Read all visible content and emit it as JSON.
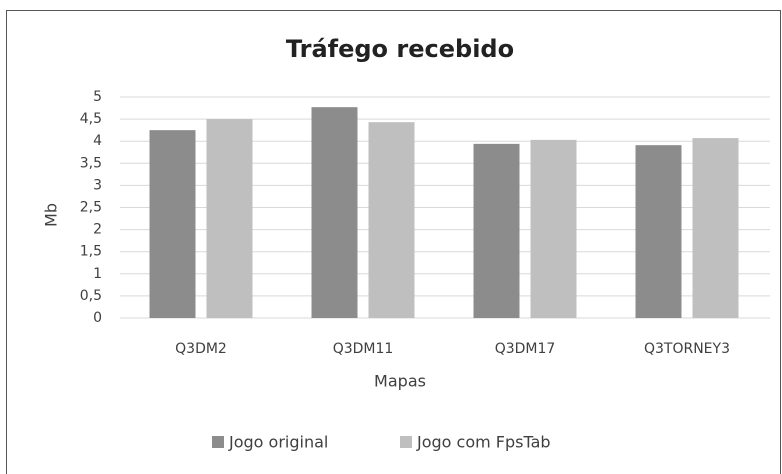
{
  "chart_data": {
    "type": "bar",
    "title": "Tráfego recebido",
    "xlabel": "Mapas",
    "ylabel": "Mb",
    "categories": [
      "Q3DM2",
      "Q3DM11",
      "Q3DM17",
      "Q3TORNEY3"
    ],
    "series": [
      {
        "name": "Jogo original",
        "color": "#8c8c8c",
        "values": [
          4.25,
          4.77,
          3.94,
          3.91
        ]
      },
      {
        "name": "Jogo com FpsTab",
        "color": "#bfbfbf",
        "values": [
          4.5,
          4.43,
          4.03,
          4.07
        ]
      }
    ],
    "ylim": [
      0,
      5
    ],
    "yticks": [
      0,
      {
        "value": 0.5,
        "label": "0,5"
      },
      1,
      {
        "value": 1.5,
        "label": "1,5"
      },
      2,
      {
        "value": 2.5,
        "label": "2,5"
      },
      3,
      {
        "value": 3.5,
        "label": "3,5"
      },
      4,
      {
        "value": 4.5,
        "label": "4,5"
      },
      5
    ],
    "grid": true,
    "legend": "bottom"
  }
}
